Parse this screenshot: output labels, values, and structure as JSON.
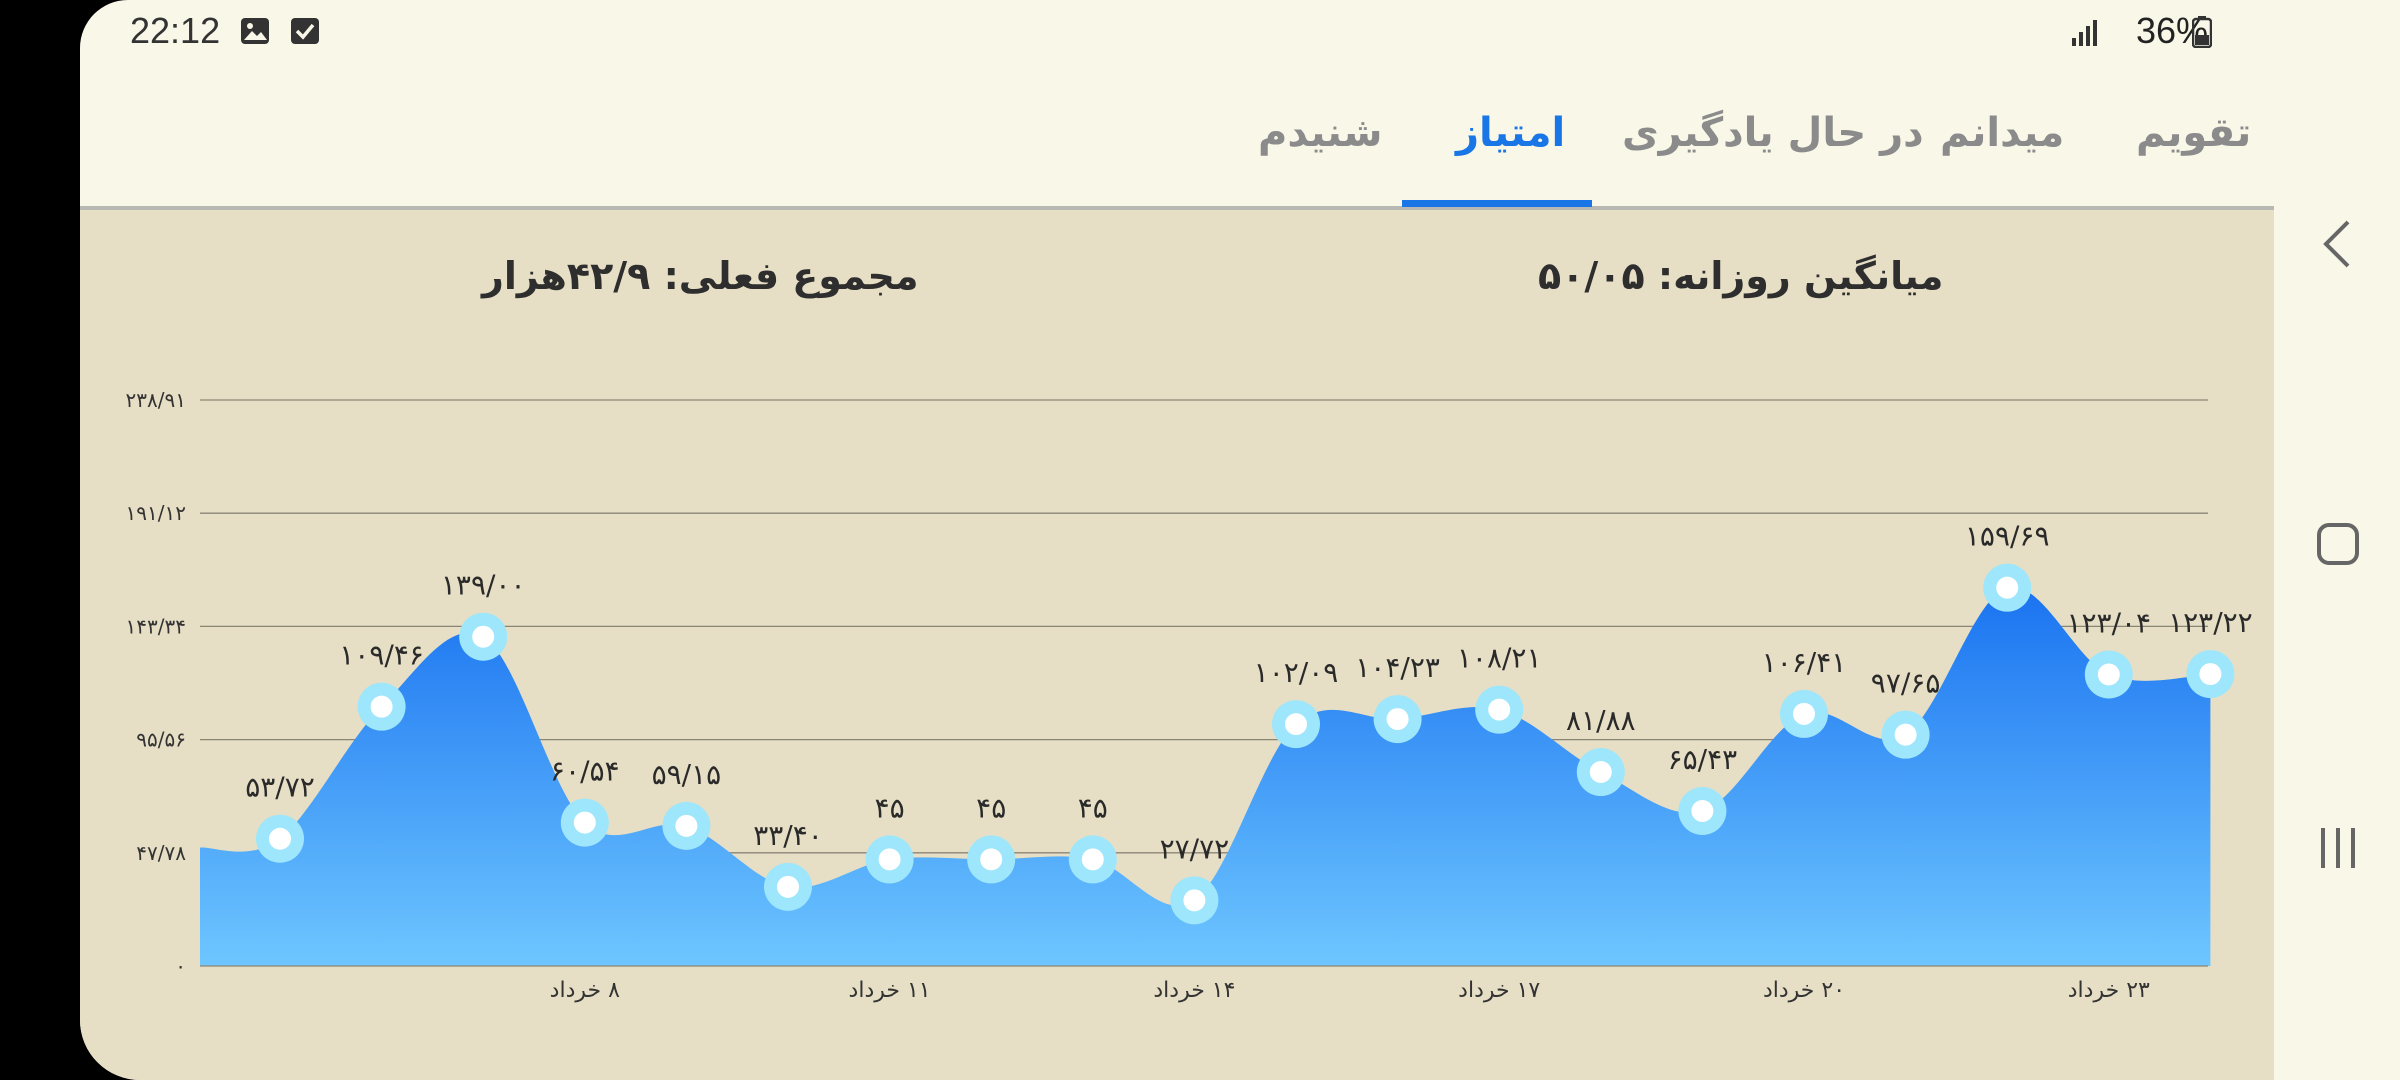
{
  "status": {
    "time": "22:12",
    "battery": "36%",
    "icons": [
      "gallery-icon",
      "checkbox-icon",
      "signal-icon",
      "battery-icon"
    ]
  },
  "tabs": [
    {
      "label": "تقویم",
      "active": false
    },
    {
      "label": "میدانم",
      "active": false
    },
    {
      "label": "در حال یادگیری",
      "active": false
    },
    {
      "label": "امتیاز",
      "active": true
    },
    {
      "label": "شنیدم",
      "active": false
    }
  ],
  "stats": {
    "daily_average": "میانگین روزانه: ۵۰/۰۵",
    "current_total": "مجموع فعلی: ۴۲/۹هزار"
  },
  "colors": {
    "accent": "#1976e6",
    "panel": "#e6dfc5",
    "area_top": "#1a73f0",
    "area_bottom": "#6ec6ff",
    "marker": "#9ee6fb"
  },
  "nav": {
    "icons": [
      "back-icon",
      "home-icon",
      "recents-icon"
    ]
  },
  "chart_data": {
    "type": "area",
    "y_ticks": [
      "۰",
      "۴۷/۷۸",
      "۹۵/۵۶",
      "۱۴۳/۳۴",
      "۱۹۱/۱۲",
      "۲۳۸/۹۱"
    ],
    "ylim": [
      0,
      238.91
    ],
    "x_ticks": [
      "۸ خرداد",
      "۱۱ خرداد",
      "۱۴ خرداد",
      "۱۷ خرداد",
      "۲۰ خرداد",
      "۲۳ خرداد"
    ],
    "x_tick_points": [
      3,
      6,
      9,
      12,
      15,
      18
    ],
    "lead_in_value": 50,
    "values": [
      53.72,
      109.46,
      139.0,
      60.54,
      59.15,
      33.4,
      45,
      45,
      45,
      27.72,
      102.09,
      104.23,
      108.21,
      81.88,
      65.43,
      106.41,
      97.65,
      159.69,
      123.04,
      123.22
    ],
    "labels": [
      "۵۳/۷۲",
      "۱۰۹/۴۶",
      "۱۳۹/۰۰",
      "۶۰/۵۴",
      "۵۹/۱۵",
      "۳۳/۴۰",
      "۴۵",
      "۴۵",
      "۴۵",
      "۲۷/۷۲",
      "۱۰۲/۰۹",
      "۱۰۴/۲۳",
      "۱۰۸/۲۱",
      "۸۱/۸۸",
      "۶۵/۴۳",
      "۱۰۶/۴۱",
      "۹۷/۶۵",
      "۱۵۹/۶۹",
      "۱۲۳/۰۴",
      "۱۲۳/۲۲"
    ],
    "grid": true
  }
}
